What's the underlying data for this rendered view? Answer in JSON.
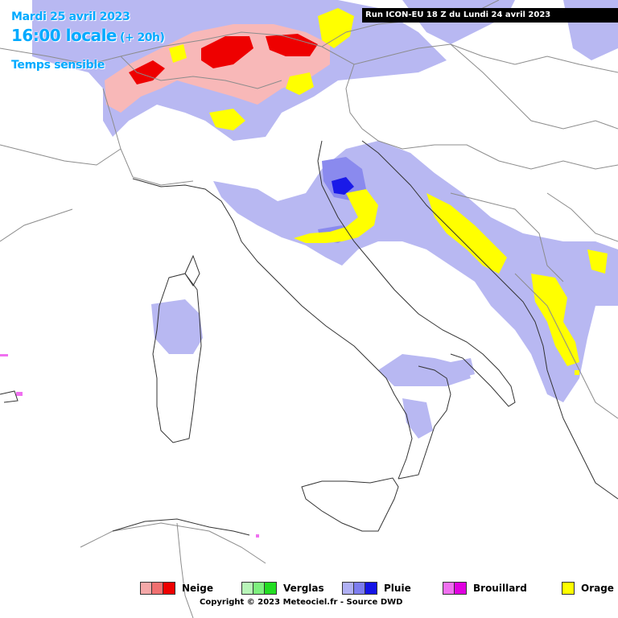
{
  "header": {
    "date": "Mardi 25 avril 2023",
    "time": "16:00 locale",
    "offset": "(+ 20h)",
    "product": "Temps sensible",
    "run": "Run ICON-EU 18 Z du Lundi 24 avril 2023"
  },
  "legend": [
    {
      "label": "Neige",
      "colors": [
        "#f4a8a8",
        "#f07070",
        "#ee0000"
      ]
    },
    {
      "label": "Verglas",
      "colors": [
        "#b8f5b8",
        "#7ef07e",
        "#22dd22"
      ]
    },
    {
      "label": "Pluie",
      "colors": [
        "#b0b0f4",
        "#7c7cee",
        "#1414e6"
      ]
    },
    {
      "label": "Brouillard",
      "colors": [
        "#f070f0",
        "#e000e0"
      ]
    },
    {
      "label": "Orage",
      "colors": [
        "#ffff00"
      ]
    }
  ],
  "copyright": "Copyright © 2023 Meteociel.fr - Source DWD",
  "colors": {
    "header_text": "#00aaff",
    "rain_light": "#b8b8f2",
    "rain_medium": "#8a8aee",
    "rain_heavy": "#1a1ae8",
    "snow_light": "#f8b8b8",
    "snow_heavy": "#ee0000",
    "thunder": "#ffff00",
    "fog": "#f070f0",
    "borders": "#8c8c8c",
    "coast": "#333333"
  }
}
